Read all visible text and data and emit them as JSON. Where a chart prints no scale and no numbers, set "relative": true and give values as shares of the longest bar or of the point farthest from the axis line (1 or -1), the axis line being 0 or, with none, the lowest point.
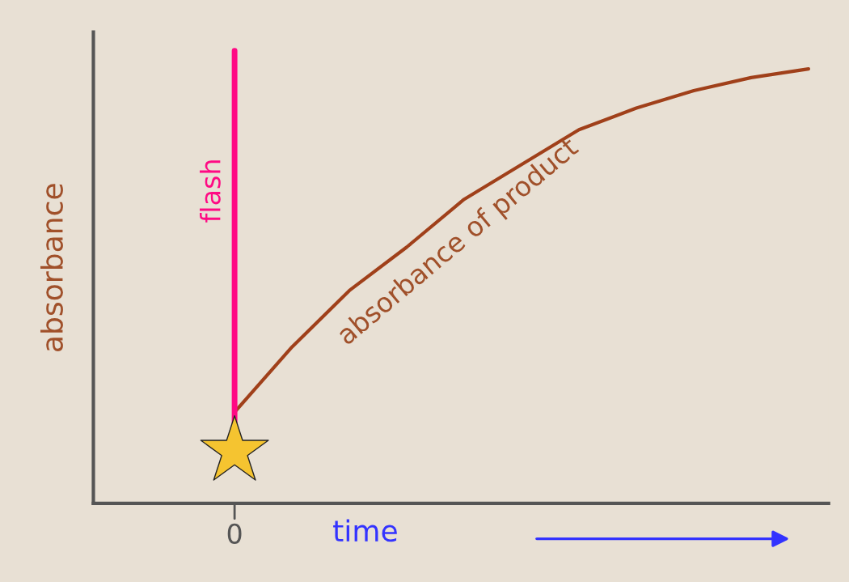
{
  "chart_data": {
    "type": "line",
    "relative": true,
    "xlabel": "time",
    "ylabel": "absorbance",
    "categories": [
      null,
      null,
      null,
      null,
      null,
      null,
      null,
      null,
      null,
      null,
      null
    ],
    "series": [
      {
        "color": "#a0401a",
        "values": [
          0.21,
          0.36,
          0.49,
          0.59,
          0.7,
          0.78,
          0.86,
          0.91,
          0.95,
          0.98,
          1.0
        ]
      }
    ],
    "ref_lines": [
      {
        "axis": "x",
        "label": "flash",
        "color": "#ff0a84"
      }
    ],
    "annotations": [
      "absorbance of product",
      "0"
    ],
    "legend": false,
    "marker": "none",
    "line_style": "solid"
  }
}
